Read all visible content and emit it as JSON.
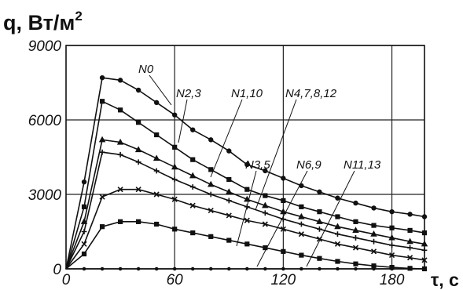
{
  "chart_data": {
    "type": "line",
    "ylabel": "q, Вт/м",
    "ylabel_superscript": "2",
    "xlabel": "τ, c",
    "xlim": [
      0,
      198
    ],
    "ylim": [
      0,
      9000
    ],
    "x_ticks": [
      "0",
      "60",
      "120",
      "180"
    ],
    "y_ticks": [
      "0",
      "3000",
      "6000",
      "9000"
    ],
    "grid": true,
    "series": [
      {
        "name": "N0",
        "marker": "circle",
        "x": [
          0,
          10,
          20,
          30,
          40,
          50,
          60,
          70,
          80,
          90,
          100,
          110,
          120,
          130,
          140,
          150,
          160,
          170,
          180,
          190,
          198
        ],
        "y": [
          0,
          3500,
          7700,
          7600,
          7200,
          6700,
          6200,
          5600,
          5200,
          4750,
          4200,
          3950,
          3650,
          3350,
          3100,
          2850,
          2650,
          2450,
          2300,
          2200,
          2100
        ]
      },
      {
        "name": "N2,3",
        "marker": "square",
        "x": [
          0,
          10,
          20,
          30,
          40,
          50,
          60,
          70,
          80,
          90,
          100,
          110,
          120,
          130,
          140,
          150,
          160,
          170,
          180,
          190,
          198
        ],
        "y": [
          0,
          2500,
          6750,
          6400,
          5900,
          5400,
          4900,
          4400,
          4000,
          3600,
          3200,
          2950,
          2750,
          2500,
          2300,
          2100,
          1900,
          1750,
          1650,
          1550,
          1450
        ]
      },
      {
        "name": "N1,10",
        "marker": "triangle",
        "x": [
          0,
          10,
          20,
          30,
          40,
          50,
          60,
          70,
          80,
          90,
          100,
          110,
          120,
          130,
          140,
          150,
          160,
          170,
          180,
          190,
          198
        ],
        "y": [
          0,
          1900,
          5200,
          5100,
          4800,
          4450,
          4100,
          3750,
          3400,
          3100,
          2800,
          2550,
          2300,
          2100,
          1900,
          1700,
          1550,
          1400,
          1250,
          1100,
          1000
        ]
      },
      {
        "name": "N4,7,8,12",
        "marker": "cross",
        "x": [
          0,
          10,
          20,
          30,
          40,
          50,
          60,
          70,
          80,
          90,
          100,
          110,
          120,
          130,
          140,
          150,
          160,
          170,
          180,
          190,
          198
        ],
        "y": [
          0,
          1500,
          4700,
          4600,
          4300,
          3950,
          3600,
          3300,
          3000,
          2750,
          2500,
          2250,
          2000,
          1800,
          1600,
          1400,
          1250,
          1100,
          950,
          850,
          750
        ]
      },
      {
        "name": "N3,5",
        "marker": "x",
        "x": [
          0,
          10,
          20,
          30,
          40,
          50,
          60,
          70,
          80,
          90,
          100,
          110,
          120,
          130,
          140,
          150,
          160,
          170,
          180,
          190,
          198
        ],
        "y": [
          0,
          1000,
          2900,
          3200,
          3200,
          3000,
          2800,
          2550,
          2350,
          2150,
          1950,
          1800,
          1600,
          1400,
          1200,
          1000,
          850,
          700,
          550,
          450,
          350
        ]
      },
      {
        "name": "N6,9",
        "marker": "square",
        "x": [
          0,
          10,
          20,
          30,
          40,
          50,
          60,
          70,
          80,
          90,
          100,
          110,
          120,
          130,
          140,
          150,
          160,
          170,
          180,
          190,
          198
        ],
        "y": [
          0,
          600,
          1700,
          1900,
          1900,
          1800,
          1600,
          1450,
          1300,
          1150,
          1000,
          850,
          700,
          550,
          420,
          300,
          200,
          120,
          60,
          20,
          0
        ]
      },
      {
        "name": "N11,13",
        "marker": "dot",
        "x": [
          0,
          10,
          20,
          30,
          40,
          50,
          60,
          70,
          80,
          90,
          100,
          110,
          120,
          130,
          140,
          150,
          160,
          170,
          180,
          190,
          198
        ],
        "y": [
          0,
          0,
          0,
          0,
          0,
          0,
          0,
          0,
          0,
          0,
          0,
          0,
          0,
          0,
          0,
          0,
          0,
          0,
          0,
          0,
          0
        ]
      }
    ]
  }
}
